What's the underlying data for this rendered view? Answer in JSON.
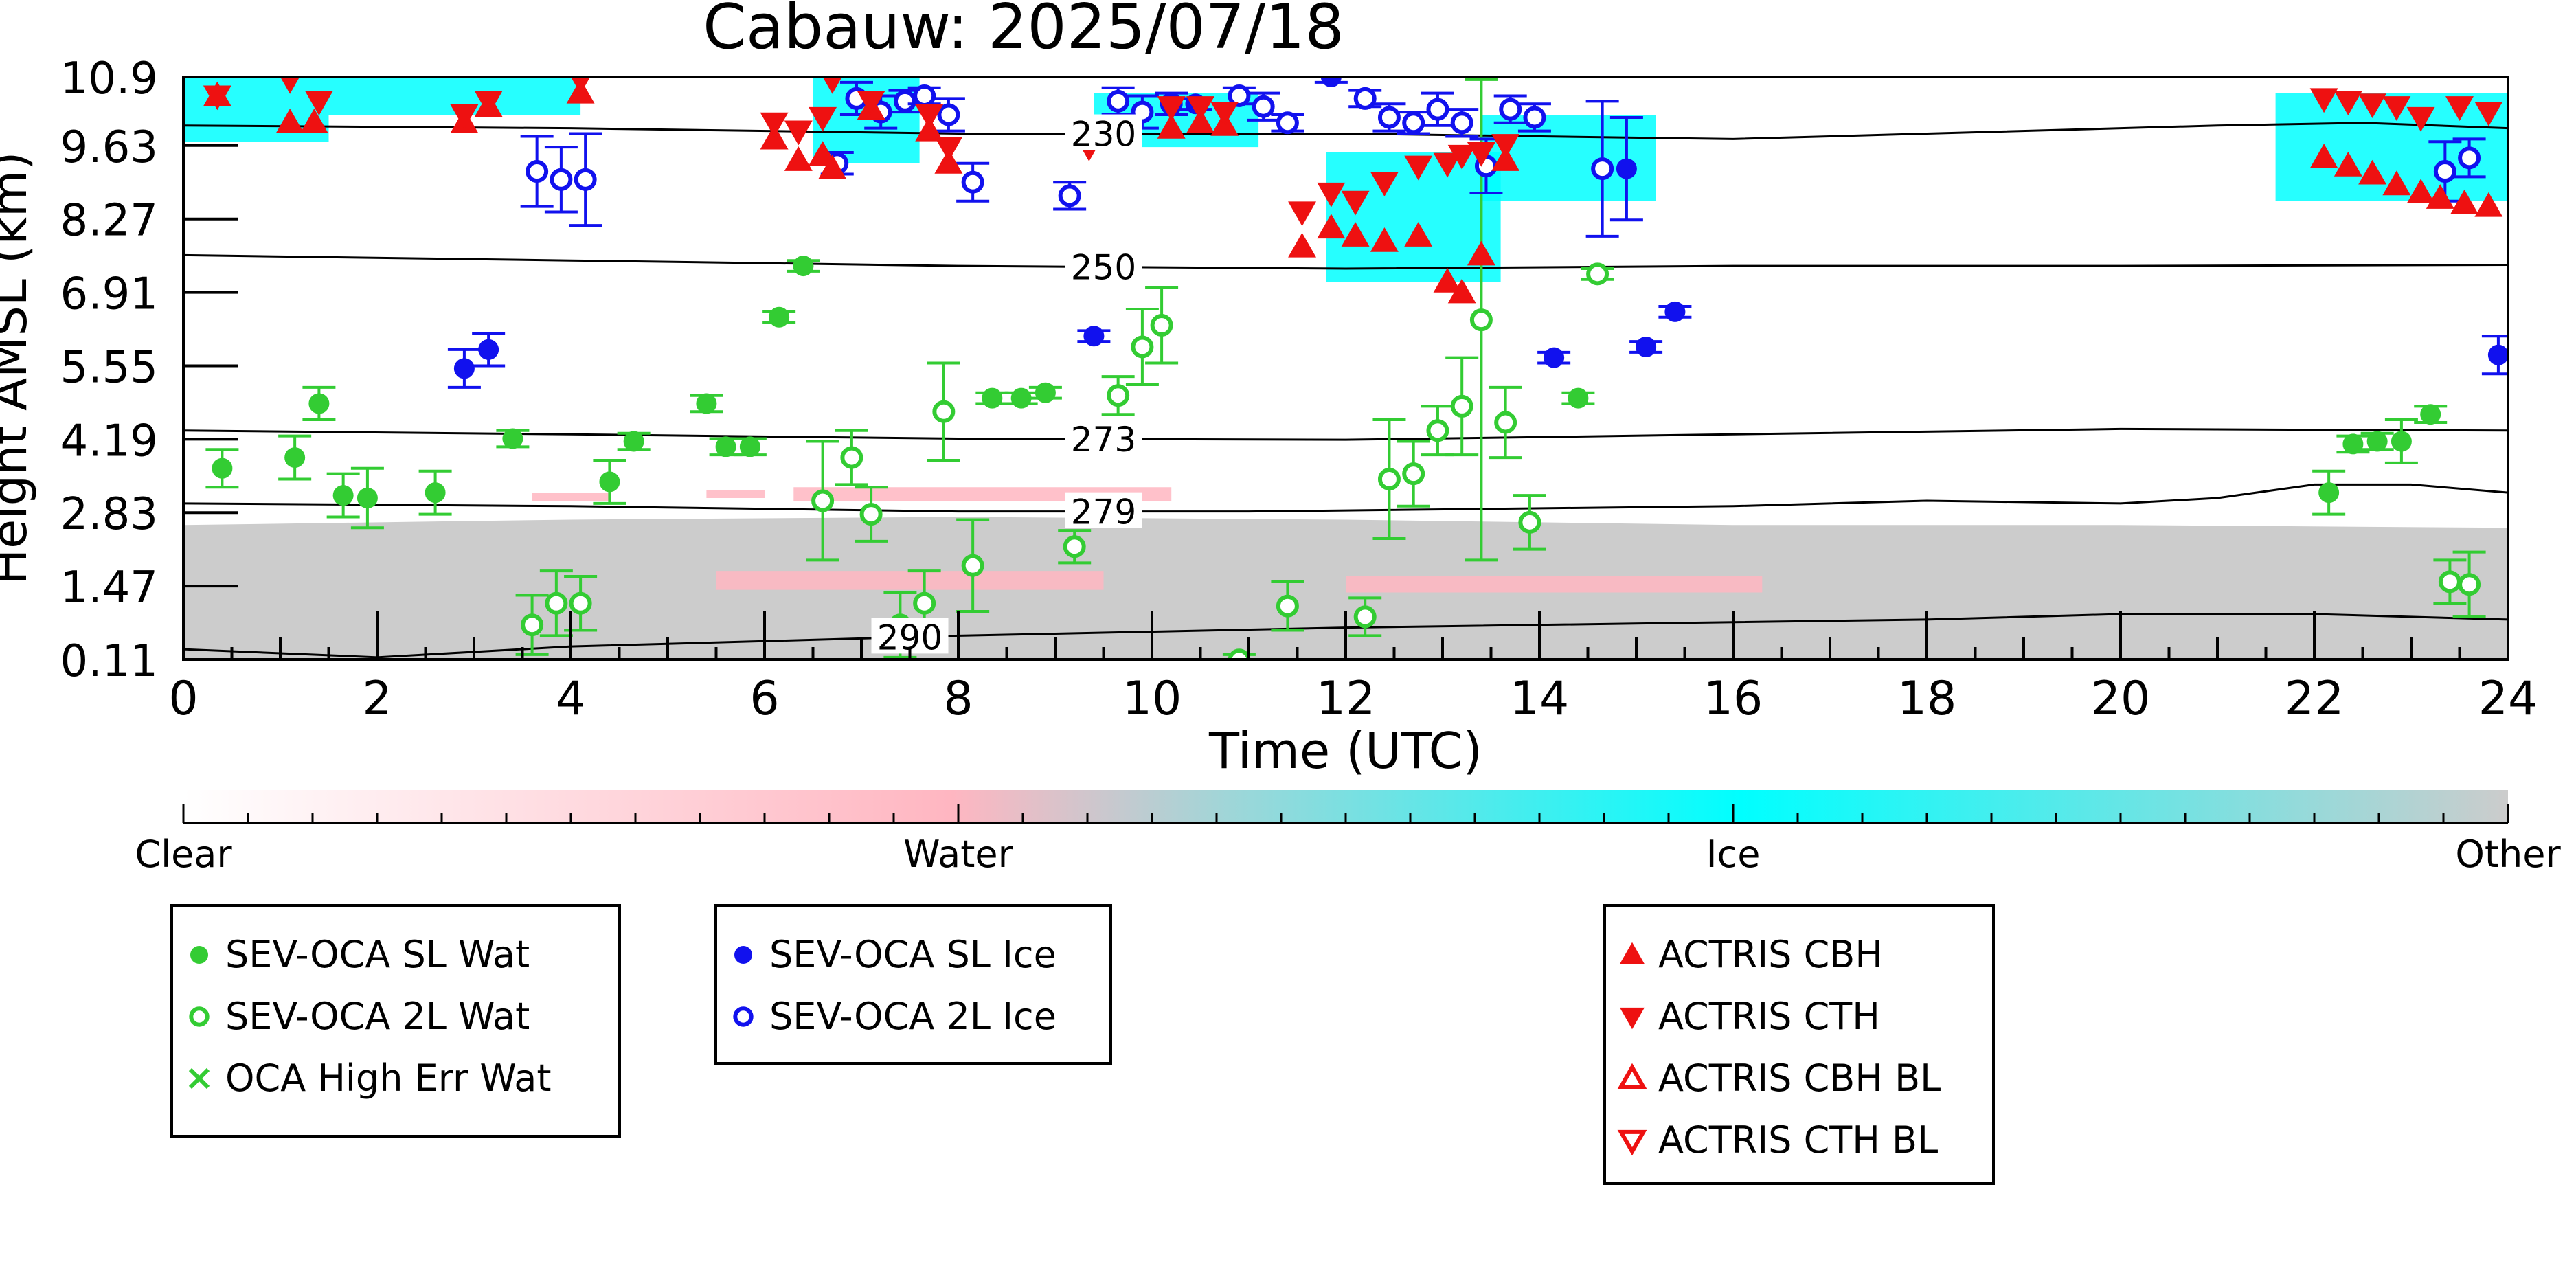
{
  "chart_data": {
    "type": "scatter",
    "title": "Cabauw: 2025/07/18",
    "xlabel": "Time (UTC)",
    "ylabel": "Height AMSL (km)",
    "xlim": [
      0,
      24
    ],
    "ylim": [
      0.11,
      10.9
    ],
    "x_ticks": [
      0,
      2,
      4,
      6,
      8,
      10,
      12,
      14,
      16,
      18,
      20,
      22,
      24
    ],
    "y_ticks": [
      0.11,
      1.47,
      2.83,
      4.19,
      5.55,
      6.91,
      8.27,
      9.63,
      10.9
    ],
    "grid": false,
    "classification": {
      "colorbar_labels": [
        "Clear",
        "Water",
        "Ice",
        "Other"
      ],
      "colors": {
        "clear": "#ffffff",
        "water": "#ffb6c1",
        "ice": "#00ffff",
        "other": "#cccccc"
      },
      "regions": [
        {
          "class": "other",
          "x0": 0,
          "x1": 24,
          "bottom": 0.11,
          "top": [
            [
              0,
              2.6
            ],
            [
              4,
              2.7
            ],
            [
              8,
              2.75
            ],
            [
              12,
              2.7
            ],
            [
              16,
              2.6
            ],
            [
              20,
              2.6
            ],
            [
              24,
              2.55
            ]
          ]
        },
        {
          "class": "water",
          "x0": 3.6,
          "x1": 4.4,
          "bottom": 3.05,
          "top": 3.2
        },
        {
          "class": "water",
          "x0": 5.4,
          "x1": 6.0,
          "bottom": 3.1,
          "top": 3.25
        },
        {
          "class": "water",
          "x0": 6.3,
          "x1": 10.2,
          "bottom": 3.05,
          "top": 3.3
        },
        {
          "class": "water",
          "x0": 5.5,
          "x1": 9.5,
          "bottom": 1.4,
          "top": 1.75
        },
        {
          "class": "water",
          "x0": 12.0,
          "x1": 16.3,
          "bottom": 1.35,
          "top": 1.65
        },
        {
          "class": "ice",
          "x0": 0,
          "x1": 1.5,
          "bottom": 9.7,
          "top": 10.9
        },
        {
          "class": "ice",
          "x0": 1.5,
          "x1": 4.1,
          "bottom": 10.2,
          "top": 10.9
        },
        {
          "class": "ice",
          "x0": 6.5,
          "x1": 7.6,
          "bottom": 9.3,
          "top": 10.9
        },
        {
          "class": "ice",
          "x0": 9.4,
          "x1": 11.1,
          "bottom": 9.6,
          "top": 10.6
        },
        {
          "class": "ice",
          "x0": 11.8,
          "x1": 13.6,
          "bottom": 7.1,
          "top": 9.5
        },
        {
          "class": "ice",
          "x0": 13.4,
          "x1": 15.2,
          "bottom": 8.6,
          "top": 10.2
        },
        {
          "class": "ice",
          "x0": 21.6,
          "x1": 24,
          "bottom": 8.6,
          "top": 10.6
        }
      ]
    },
    "contours": [
      {
        "label": "230",
        "label_x": 9.5,
        "points": [
          [
            0,
            10.0
          ],
          [
            4,
            9.95
          ],
          [
            8,
            9.85
          ],
          [
            12,
            9.85
          ],
          [
            16,
            9.75
          ],
          [
            18,
            9.85
          ],
          [
            21,
            10.0
          ],
          [
            22.5,
            10.05
          ],
          [
            24,
            9.95
          ]
        ]
      },
      {
        "label": "250",
        "label_x": 9.5,
        "points": [
          [
            0,
            7.6
          ],
          [
            4,
            7.5
          ],
          [
            8,
            7.4
          ],
          [
            12,
            7.35
          ],
          [
            16,
            7.4
          ],
          [
            20,
            7.4
          ],
          [
            24,
            7.42
          ]
        ]
      },
      {
        "label": "273",
        "label_x": 9.5,
        "points": [
          [
            0,
            4.35
          ],
          [
            4,
            4.28
          ],
          [
            8,
            4.2
          ],
          [
            12,
            4.18
          ],
          [
            16,
            4.28
          ],
          [
            20,
            4.38
          ],
          [
            24,
            4.35
          ]
        ]
      },
      {
        "label": "279",
        "label_x": 9.5,
        "points": [
          [
            0,
            3.0
          ],
          [
            4,
            2.95
          ],
          [
            8,
            2.85
          ],
          [
            11,
            2.85
          ],
          [
            16,
            2.95
          ],
          [
            18,
            3.05
          ],
          [
            20,
            3.0
          ],
          [
            21,
            3.1
          ],
          [
            22,
            3.35
          ],
          [
            23,
            3.35
          ],
          [
            24,
            3.2
          ]
        ]
      },
      {
        "label": "290",
        "label_x": 7.5,
        "points": [
          [
            0,
            0.3
          ],
          [
            2,
            0.15
          ],
          [
            4,
            0.35
          ],
          [
            8,
            0.55
          ],
          [
            12,
            0.7
          ],
          [
            16,
            0.8
          ],
          [
            18,
            0.85
          ],
          [
            20,
            0.95
          ],
          [
            22,
            0.95
          ],
          [
            24,
            0.85
          ]
        ]
      }
    ],
    "series": [
      {
        "name": "SEV-OCA SL Wat",
        "color": "#33cc33",
        "marker": "filled-circle",
        "points": [
          [
            0.4,
            3.65,
            0.35
          ],
          [
            1.15,
            3.85,
            0.4
          ],
          [
            1.4,
            4.85,
            0.3
          ],
          [
            1.65,
            3.15,
            0.4
          ],
          [
            1.9,
            3.1,
            0.55
          ],
          [
            2.6,
            3.2,
            0.4
          ],
          [
            3.4,
            4.2,
            0.15
          ],
          [
            4.4,
            3.4,
            0.4
          ],
          [
            4.65,
            4.15,
            0.15
          ],
          [
            5.4,
            4.85,
            0.15
          ],
          [
            5.6,
            4.05,
            0.15
          ],
          [
            5.85,
            4.05,
            0.15
          ],
          [
            6.15,
            6.45,
            0.1
          ],
          [
            6.4,
            7.4,
            0.1
          ],
          [
            8.35,
            4.95,
            0.1
          ],
          [
            8.65,
            4.95,
            0.1
          ],
          [
            8.9,
            5.05,
            0.1
          ],
          [
            14.4,
            4.95,
            0.1
          ],
          [
            22.15,
            3.2,
            0.4
          ],
          [
            22.4,
            4.1,
            0.15
          ],
          [
            22.65,
            4.15,
            0.15
          ],
          [
            22.9,
            4.15,
            0.4
          ],
          [
            23.2,
            4.65,
            0.15
          ]
        ]
      },
      {
        "name": "SEV-OCA 2L Wat",
        "color": "#33cc33",
        "marker": "open-circle",
        "points": [
          [
            3.6,
            0.75,
            0.55
          ],
          [
            3.85,
            1.15,
            0.6
          ],
          [
            4.1,
            1.15,
            0.5
          ],
          [
            6.6,
            3.05,
            1.1
          ],
          [
            6.9,
            3.85,
            0.5
          ],
          [
            7.1,
            2.8,
            0.5
          ],
          [
            7.4,
            0.75,
            0.6
          ],
          [
            7.65,
            1.15,
            0.6
          ],
          [
            7.85,
            4.7,
            0.9
          ],
          [
            8.15,
            1.85,
            0.85
          ],
          [
            9.2,
            2.2,
            0.3
          ],
          [
            9.65,
            5.0,
            0.35
          ],
          [
            9.9,
            5.9,
            0.7
          ],
          [
            10.1,
            6.3,
            0.7
          ],
          [
            10.9,
            0.1,
            0.1
          ],
          [
            11.4,
            1.1,
            0.45
          ],
          [
            12.2,
            0.9,
            0.35
          ],
          [
            12.45,
            3.45,
            1.1
          ],
          [
            12.7,
            3.55,
            0.6
          ],
          [
            12.95,
            4.35,
            0.45
          ],
          [
            13.2,
            4.8,
            0.9
          ],
          [
            13.4,
            6.4,
            4.45
          ],
          [
            13.65,
            4.5,
            0.65
          ],
          [
            13.9,
            2.65,
            0.5
          ],
          [
            14.6,
            7.25,
            0.1
          ],
          [
            23.4,
            1.55,
            0.4
          ],
          [
            23.6,
            1.5,
            0.6
          ]
        ]
      },
      {
        "name": "OCA High Err Wat",
        "color": "#33cc33",
        "marker": "x",
        "points": []
      },
      {
        "name": "SEV-OCA SL Ice",
        "color": "#1111ee",
        "marker": "filled-circle",
        "points": [
          [
            2.9,
            5.5,
            0.35
          ],
          [
            3.15,
            5.85,
            0.3
          ],
          [
            9.4,
            6.1,
            0.1
          ],
          [
            10.45,
            10.4,
            0.1
          ],
          [
            11.85,
            10.9,
            0.1
          ],
          [
            14.15,
            5.7,
            0.1
          ],
          [
            14.9,
            9.2,
            0.95
          ],
          [
            15.1,
            5.9,
            0.1
          ],
          [
            15.4,
            6.55,
            0.1
          ],
          [
            23.9,
            5.75,
            0.35
          ]
        ]
      },
      {
        "name": "SEV-OCA 2L Ice",
        "color": "#1111ee",
        "marker": "open-circle",
        "points": [
          [
            3.65,
            9.15,
            0.65
          ],
          [
            3.9,
            9.0,
            0.6
          ],
          [
            4.15,
            9.0,
            0.85
          ],
          [
            6.75,
            9.3,
            0.2
          ],
          [
            6.95,
            10.5,
            0.3
          ],
          [
            7.2,
            10.25,
            0.3
          ],
          [
            7.45,
            10.45,
            0.2
          ],
          [
            7.65,
            10.55,
            0.15
          ],
          [
            7.9,
            10.2,
            0.3
          ],
          [
            8.15,
            8.95,
            0.35
          ],
          [
            9.15,
            8.7,
            0.25
          ],
          [
            9.65,
            10.45,
            0.25
          ],
          [
            9.9,
            10.25,
            0.3
          ],
          [
            10.2,
            10.4,
            0.2
          ],
          [
            10.9,
            10.55,
            0.15
          ],
          [
            11.15,
            10.35,
            0.25
          ],
          [
            11.4,
            10.05,
            0.15
          ],
          [
            12.2,
            10.5,
            0.15
          ],
          [
            12.45,
            10.15,
            0.25
          ],
          [
            12.7,
            10.05,
            0.2
          ],
          [
            12.95,
            10.3,
            0.3
          ],
          [
            13.2,
            10.05,
            0.25
          ],
          [
            13.45,
            9.25,
            0.5
          ],
          [
            13.7,
            10.3,
            0.25
          ],
          [
            13.95,
            10.15,
            0.25
          ],
          [
            14.65,
            9.2,
            1.25
          ],
          [
            23.35,
            9.15,
            0.55
          ],
          [
            23.6,
            9.4,
            0.35
          ]
        ]
      },
      {
        "name": "ACTRIS CBH",
        "color": "#ee1111",
        "marker": "triangle-up",
        "points": [
          [
            0.35,
            10.55
          ],
          [
            1.1,
            10.05
          ],
          [
            1.35,
            10.05
          ],
          [
            2.9,
            10.05
          ],
          [
            3.15,
            10.35
          ],
          [
            4.1,
            10.6
          ],
          [
            6.1,
            9.75
          ],
          [
            6.35,
            9.35
          ],
          [
            6.6,
            9.45
          ],
          [
            6.7,
            9.2
          ],
          [
            7.1,
            10.3
          ],
          [
            7.7,
            9.9
          ],
          [
            7.9,
            9.3
          ],
          [
            10.2,
            9.95
          ],
          [
            10.5,
            10.05
          ],
          [
            10.75,
            10.0
          ],
          [
            11.55,
            7.75
          ],
          [
            11.85,
            8.1
          ],
          [
            12.1,
            7.95
          ],
          [
            12.4,
            7.85
          ],
          [
            12.75,
            7.95
          ],
          [
            13.05,
            7.1
          ],
          [
            13.2,
            6.9
          ],
          [
            13.4,
            7.6
          ],
          [
            13.65,
            9.35
          ],
          [
            22.1,
            9.4
          ],
          [
            22.35,
            9.25
          ],
          [
            22.6,
            9.1
          ],
          [
            22.85,
            8.9
          ],
          [
            23.1,
            8.75
          ],
          [
            23.3,
            8.65
          ],
          [
            23.55,
            8.55
          ],
          [
            23.8,
            8.5
          ]
        ]
      },
      {
        "name": "ACTRIS CTH",
        "color": "#ee1111",
        "marker": "triangle-down",
        "points": [
          [
            0.35,
            10.55
          ],
          [
            1.1,
            10.85
          ],
          [
            1.4,
            10.45
          ],
          [
            2.9,
            10.2
          ],
          [
            3.15,
            10.45
          ],
          [
            4.1,
            10.85
          ],
          [
            6.1,
            10.05
          ],
          [
            6.35,
            9.9
          ],
          [
            6.6,
            10.15
          ],
          [
            6.7,
            10.85
          ],
          [
            7.1,
            10.45
          ],
          [
            7.7,
            10.2
          ],
          [
            7.9,
            9.6
          ],
          [
            9.35,
            9.6
          ],
          [
            10.2,
            10.35
          ],
          [
            10.5,
            10.35
          ],
          [
            10.75,
            10.25
          ],
          [
            11.55,
            8.4
          ],
          [
            11.85,
            8.75
          ],
          [
            12.1,
            8.6
          ],
          [
            12.4,
            8.95
          ],
          [
            12.75,
            9.25
          ],
          [
            13.05,
            9.3
          ],
          [
            13.2,
            9.45
          ],
          [
            13.4,
            9.5
          ],
          [
            13.65,
            9.65
          ],
          [
            22.1,
            10.5
          ],
          [
            22.35,
            10.45
          ],
          [
            22.6,
            10.4
          ],
          [
            22.85,
            10.35
          ],
          [
            23.1,
            10.15
          ],
          [
            23.5,
            10.35
          ],
          [
            23.8,
            10.25
          ]
        ]
      },
      {
        "name": "ACTRIS CBH BL",
        "color": "#ee1111",
        "marker": "open-triangle-up",
        "points": []
      },
      {
        "name": "ACTRIS CTH BL",
        "color": "#ee1111",
        "marker": "open-triangle-down",
        "points": []
      }
    ],
    "legend_groups": [
      {
        "placement": "bottom-left",
        "entries": [
          "SEV-OCA SL Wat",
          "SEV-OCA 2L Wat",
          "OCA High Err Wat"
        ]
      },
      {
        "placement": "bottom-center-left",
        "entries": [
          "SEV-OCA SL Ice",
          "SEV-OCA 2L Ice"
        ]
      },
      {
        "placement": "bottom-right",
        "entries": [
          "ACTRIS CBH",
          "ACTRIS CTH",
          "ACTRIS CBH BL",
          "ACTRIS CTH BL"
        ]
      }
    ]
  }
}
